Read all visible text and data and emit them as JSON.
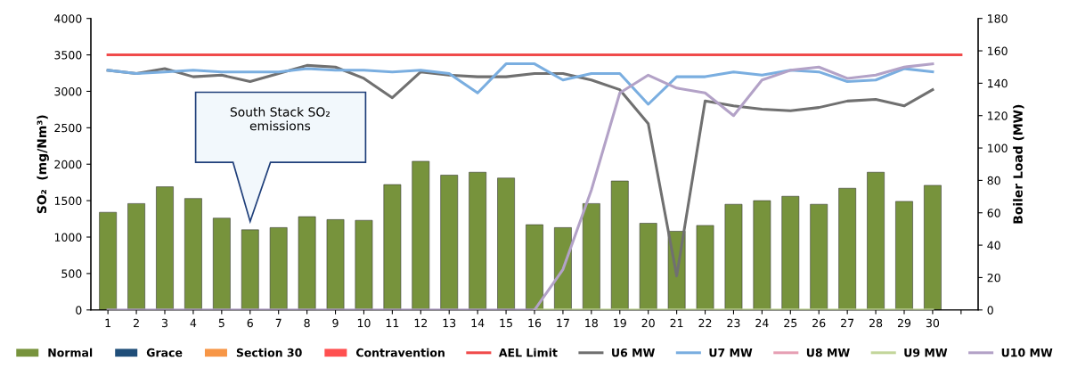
{
  "chart_data": {
    "type": "bar",
    "ylabel": "SO₂  (mg/Nm³)",
    "y2label": "Boiler Load (MW)",
    "categories": [
      "1",
      "2",
      "3",
      "4",
      "5",
      "6",
      "7",
      "8",
      "9",
      "10",
      "11",
      "12",
      "13",
      "14",
      "15",
      "16",
      "17",
      "18",
      "19",
      "20",
      "21",
      "22",
      "23",
      "24",
      "25",
      "26",
      "27",
      "28",
      "29",
      "30",
      null
    ],
    "series": [
      {
        "name": "Normal",
        "color": "#77933c",
        "values": [
          1340,
          1460,
          1690,
          1530,
          1260,
          1100,
          1130,
          1280,
          1240,
          1230,
          1720,
          2040,
          1850,
          1890,
          1810,
          1170,
          1130,
          1460,
          1770,
          1190,
          1080,
          1160,
          1450,
          1500,
          1560,
          1450,
          1670,
          1890,
          1490,
          1710,
          null
        ]
      },
      {
        "name": "Grace",
        "color": "#1f4e79",
        "values": [
          null,
          null,
          null,
          null,
          null,
          null,
          null,
          null,
          null,
          null,
          null,
          null,
          null,
          null,
          null,
          null,
          null,
          null,
          null,
          null,
          null,
          null,
          null,
          null,
          null,
          null,
          null,
          null,
          null,
          null,
          null
        ]
      },
      {
        "name": "Section 30",
        "color": "#f79646",
        "values": [
          null,
          null,
          null,
          null,
          null,
          null,
          null,
          null,
          null,
          null,
          null,
          null,
          null,
          null,
          null,
          null,
          null,
          null,
          null,
          null,
          null,
          null,
          null,
          null,
          null,
          null,
          null,
          null,
          null,
          null,
          null
        ]
      },
      {
        "name": "Contravention",
        "color": "#ff5050",
        "values": [
          null,
          null,
          null,
          null,
          null,
          null,
          null,
          null,
          null,
          null,
          null,
          null,
          null,
          null,
          null,
          null,
          null,
          null,
          null,
          null,
          null,
          null,
          null,
          null,
          null,
          null,
          null,
          null,
          null,
          null,
          null
        ]
      },
      {
        "name": "AEL Limit",
        "type": "line",
        "color": "#f04b4b",
        "values": [
          3500,
          3500,
          3500,
          3500,
          3500,
          3500,
          3500,
          3500,
          3500,
          3500,
          3500,
          3500,
          3500,
          3500,
          3500,
          3500,
          3500,
          3500,
          3500,
          3500,
          3500,
          3500,
          3500,
          3500,
          3500,
          3500,
          3500,
          3500,
          3500,
          3500,
          3500
        ]
      },
      {
        "name": "U6 MW",
        "type": "line",
        "axis": "y2",
        "color": "#707070",
        "values": [
          148,
          146,
          149,
          144,
          145,
          141,
          146,
          151,
          150,
          143,
          131,
          147,
          145,
          144,
          144,
          146,
          146,
          142,
          136,
          115,
          21,
          129,
          126,
          124,
          123,
          125,
          129,
          130,
          126,
          136,
          null
        ]
      },
      {
        "name": "U7 MW",
        "type": "line",
        "axis": "y2",
        "color": "#7aaee0",
        "values": [
          148,
          146,
          147,
          148,
          147,
          147,
          147,
          149,
          148,
          148,
          147,
          148,
          146,
          134,
          152,
          152,
          142,
          146,
          146,
          127,
          144,
          144,
          147,
          145,
          148,
          147,
          141,
          142,
          149,
          147,
          null
        ]
      },
      {
        "name": "U8 MW",
        "type": "line",
        "axis": "y2",
        "color": "#e6a0b4",
        "values": [
          null,
          null,
          null,
          null,
          null,
          null,
          null,
          null,
          null,
          null,
          null,
          null,
          null,
          null,
          null,
          null,
          null,
          null,
          null,
          null,
          null,
          null,
          null,
          null,
          null,
          null,
          null,
          null,
          null,
          null,
          null
        ]
      },
      {
        "name": "U9 MW",
        "type": "line",
        "axis": "y2",
        "color": "#c3d69b",
        "values": [
          null,
          null,
          null,
          null,
          null,
          null,
          null,
          null,
          null,
          null,
          null,
          null,
          null,
          null,
          null,
          0,
          0,
          0,
          0,
          0,
          0,
          0,
          0,
          0,
          0,
          0,
          0,
          0,
          0,
          0,
          null
        ]
      },
      {
        "name": "U10 MW",
        "type": "line",
        "axis": "y2",
        "color": "#b3a2c7",
        "values": [
          0,
          0,
          0,
          0,
          0,
          0,
          0,
          0,
          0,
          0,
          0,
          0,
          0,
          0,
          0,
          0,
          25,
          74,
          134,
          145,
          137,
          134,
          120,
          142,
          148,
          150,
          143,
          145,
          150,
          152,
          null
        ]
      }
    ],
    "ylim": [
      0,
      4000
    ],
    "yticks": [
      0,
      500,
      1000,
      1500,
      2000,
      2500,
      3000,
      3500,
      4000
    ],
    "y2lim": [
      0,
      180
    ],
    "y2ticks": [
      0,
      20,
      40,
      60,
      80,
      100,
      120,
      140,
      160,
      180
    ],
    "annotations": [
      "South Stack SO₂\nemissions"
    ],
    "legend": "bottom",
    "grid": false
  }
}
